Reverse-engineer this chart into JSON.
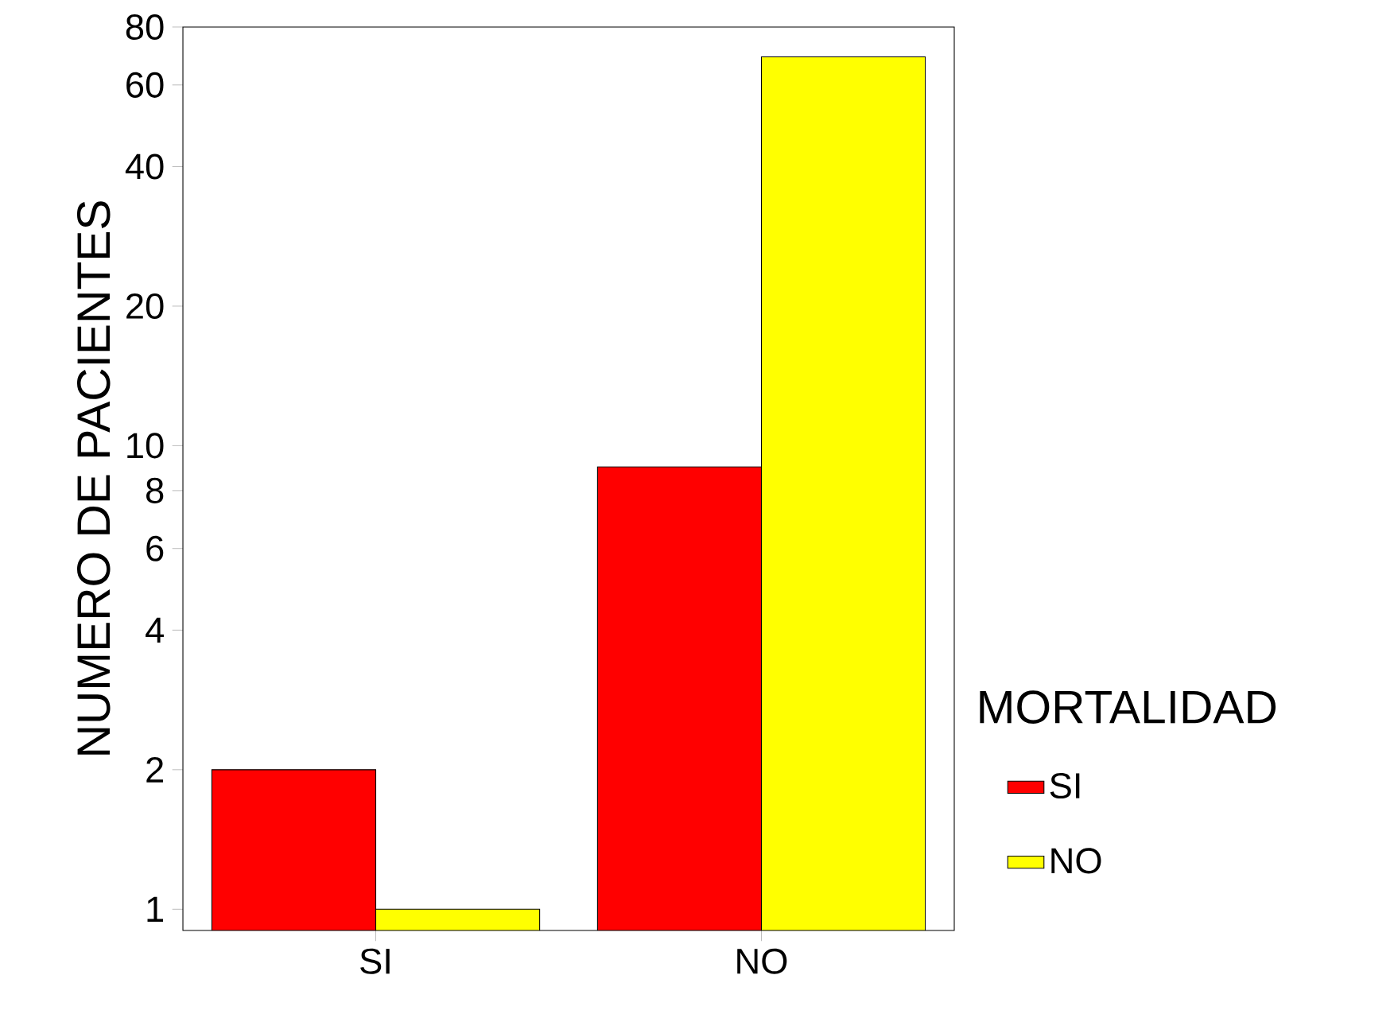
{
  "chart_data": {
    "type": "bar",
    "ylabel": "NUMERO DE PACIENTES",
    "legend_title": "MORTALIDAD",
    "categories": [
      "SI",
      "NO"
    ],
    "series": [
      {
        "name": "SI",
        "color": "#ff0000",
        "values": [
          2,
          9
        ]
      },
      {
        "name": "NO",
        "color": "#ffff00",
        "values": [
          1,
          69
        ]
      }
    ],
    "log": "y",
    "ylim": [
      0.9,
      80
    ],
    "yticks": [
      1,
      2,
      4,
      6,
      8,
      10,
      20,
      40,
      60,
      80
    ],
    "legend": "right",
    "grid": false
  }
}
